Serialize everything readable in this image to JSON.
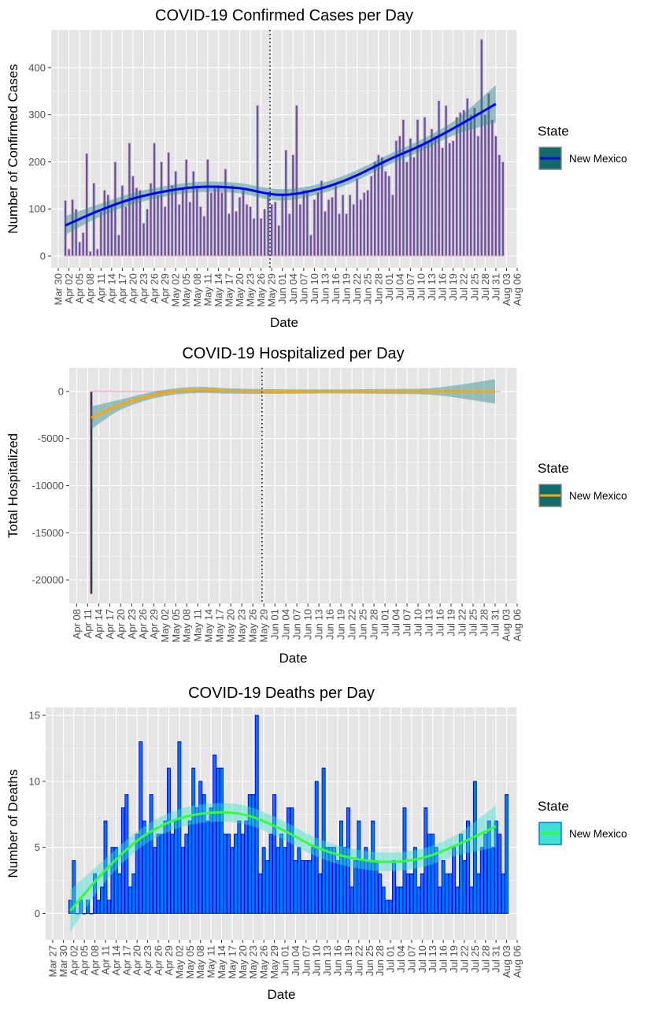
{
  "legend_title": "State",
  "state_label": "New Mexico",
  "colors": {
    "panel": "#e5e5e5",
    "grid": "#ffffff",
    "cases_bar_fill": "#555fa0",
    "cases_bar_outline": "#f3b7d1",
    "cases_smooth": "#0000ff",
    "hosp_bar_fill": "#2f3e4f",
    "hosp_bar_outline": "#f3b7d1",
    "hosp_smooth": "#ffa500",
    "deaths_bar_fill": "#0077ff",
    "deaths_bar_outline": "#0000cc",
    "deaths_smooth": "#33ff33",
    "band_teal": "#2e8b8b",
    "band_aqua": "#40e0d0",
    "legend_key_teal": "#116b6b",
    "legend_key_aqua": "#40e0d0"
  },
  "chart_data": [
    {
      "id": "cases",
      "type": "bar",
      "title": "COVID-19 Confirmed Cases per Day",
      "xlabel": "Date",
      "ylabel": "Number of Confirmed Cases",
      "x_unit": "day",
      "x_start": "2020-04-01",
      "xlim": [
        "2020-03-28",
        "2020-08-06"
      ],
      "ylim": [
        -25,
        480
      ],
      "yticks": [
        0,
        100,
        200,
        300,
        400
      ],
      "xtick_labels": [
        "Mar 30",
        "Apr 02",
        "Apr 05",
        "Apr 08",
        "Apr 11",
        "Apr 14",
        "Apr 17",
        "Apr 20",
        "Apr 23",
        "Apr 26",
        "Apr 29",
        "May 02",
        "May 05",
        "May 08",
        "May 11",
        "May 14",
        "May 17",
        "May 20",
        "May 23",
        "May 26",
        "May 29",
        "Jun 01",
        "Jun 04",
        "Jun 07",
        "Jun 10",
        "Jun 13",
        "Jun 16",
        "Jun 19",
        "Jun 22",
        "Jun 25",
        "Jun 28",
        "Jul 01",
        "Jul 04",
        "Jul 07",
        "Jul 10",
        "Jul 13",
        "Jul 16",
        "Jul 19",
        "Jul 22",
        "Jul 25",
        "Jul 28",
        "Jul 31",
        "Aug 03",
        "Aug 06"
      ],
      "vline": "2020-05-29",
      "grid": true,
      "legend": "right",
      "series": [
        {
          "name": "New Mexico",
          "values": [
            118,
            15,
            120,
            100,
            30,
            50,
            218,
            10,
            155,
            15,
            95,
            140,
            130,
            110,
            200,
            45,
            150,
            105,
            240,
            170,
            145,
            140,
            70,
            100,
            155,
            240,
            130,
            200,
            105,
            220,
            150,
            180,
            110,
            145,
            205,
            115,
            180,
            150,
            105,
            85,
            205,
            135,
            145,
            150,
            135,
            185,
            90,
            150,
            95,
            125,
            140,
            110,
            105,
            80,
            320,
            80,
            100,
            130,
            110,
            115,
            65,
            130,
            225,
            90,
            215,
            320,
            110,
            140,
            140,
            45,
            120,
            135,
            160,
            95,
            120,
            125,
            150,
            90,
            130,
            90,
            130,
            110,
            165,
            120,
            135,
            140,
            170,
            200,
            215,
            210,
            180,
            170,
            130,
            245,
            255,
            290,
            200,
            250,
            210,
            290,
            235,
            295,
            245,
            270,
            255,
            330,
            230,
            320,
            240,
            245,
            295,
            305,
            310,
            335,
            300,
            315,
            255,
            460,
            300,
            345,
            290,
            255,
            215,
            200
          ],
          "smooth_x": [
            "2020-04-01",
            "2020-04-10",
            "2020-04-20",
            "2020-05-01",
            "2020-05-10",
            "2020-05-20",
            "2020-05-31",
            "2020-06-10",
            "2020-06-20",
            "2020-07-01",
            "2020-07-10",
            "2020-07-20",
            "2020-07-31"
          ],
          "smooth_y": [
            65,
            95,
            122,
            140,
            147,
            144,
            130,
            140,
            165,
            205,
            235,
            275,
            323
          ],
          "band": [
            20,
            14,
            12,
            11,
            11,
            11,
            12,
            11,
            11,
            11,
            12,
            16,
            40
          ]
        }
      ]
    },
    {
      "id": "hospitalized",
      "type": "bar",
      "title": "COVID-19 Hospitalized per Day",
      "xlabel": "Date",
      "ylabel": "Total Hospitalized",
      "x_unit": "day",
      "x_start": "2020-04-12",
      "xlim": [
        "2020-04-06",
        "2020-08-06"
      ],
      "ylim": [
        -22500,
        2500
      ],
      "yticks": [
        0,
        -5000,
        -10000,
        -15000,
        -20000
      ],
      "xtick_labels": [
        "Apr 08",
        "Apr 11",
        "Apr 14",
        "Apr 17",
        "Apr 20",
        "Apr 23",
        "Apr 26",
        "Apr 29",
        "May 02",
        "May 05",
        "May 08",
        "May 11",
        "May 14",
        "May 17",
        "May 20",
        "May 23",
        "May 26",
        "May 29",
        "Jun 01",
        "Jun 04",
        "Jun 07",
        "Jun 10",
        "Jun 13",
        "Jun 16",
        "Jun 19",
        "Jun 22",
        "Jun 25",
        "Jun 28",
        "Jul 01",
        "Jul 04",
        "Jul 07",
        "Jul 10",
        "Jul 13",
        "Jul 16",
        "Jul 19",
        "Jul 22",
        "Jul 25",
        "Jul 28",
        "Jul 31",
        "Aug 03",
        "Aug 06"
      ],
      "vline": "2020-05-29",
      "grid": true,
      "legend": "right",
      "series": [
        {
          "name": "New Mexico",
          "values": [
            -21500,
            60,
            80,
            60,
            50,
            60,
            40,
            30,
            30,
            20,
            10,
            10,
            10,
            10,
            10,
            10,
            10,
            10,
            10,
            10,
            10,
            10,
            10,
            10,
            10,
            10,
            10,
            10,
            10,
            10,
            10,
            10,
            10,
            10,
            10,
            10,
            10,
            10,
            10,
            10,
            10,
            10,
            10,
            10,
            10,
            10,
            10,
            10,
            10,
            10,
            10,
            10,
            10,
            10,
            10,
            10,
            10,
            10,
            10,
            10,
            10,
            10,
            10,
            10,
            10,
            10,
            10,
            10,
            10,
            10,
            10,
            10,
            10,
            10,
            10,
            10,
            10,
            10,
            10,
            10,
            10,
            10,
            10,
            10,
            10,
            10,
            10,
            10,
            10,
            10,
            10,
            10,
            10,
            10,
            10,
            10,
            10,
            10,
            10,
            10,
            10,
            10,
            10,
            10,
            10,
            10,
            10,
            10,
            10,
            10,
            10,
            10
          ],
          "smooth_x": [
            "2020-04-12",
            "2020-04-20",
            "2020-04-30",
            "2020-05-10",
            "2020-05-20",
            "2020-06-01",
            "2020-06-15",
            "2020-07-01",
            "2020-07-15",
            "2020-07-31"
          ],
          "smooth_y": [
            -2800,
            -1400,
            -300,
            150,
            40,
            -10,
            0,
            0,
            0,
            0
          ],
          "band": [
            1200,
            550,
            350,
            330,
            280,
            250,
            220,
            260,
            400,
            1300
          ]
        }
      ]
    },
    {
      "id": "deaths",
      "type": "bar",
      "title": "COVID-19 Deaths per Day",
      "xlabel": "Date",
      "ylabel": "Number of Deaths",
      "x_unit": "day",
      "x_start": "2020-04-01",
      "xlim": [
        "2020-03-25",
        "2020-08-06"
      ],
      "ylim": [
        -2,
        15.6
      ],
      "yticks": [
        0,
        5,
        10,
        15
      ],
      "xtick_labels": [
        "Mar 27",
        "Mar 30",
        "Apr 02",
        "Apr 05",
        "Apr 08",
        "Apr 11",
        "Apr 14",
        "Apr 17",
        "Apr 20",
        "Apr 23",
        "Apr 26",
        "Apr 29",
        "May 02",
        "May 05",
        "May 08",
        "May 11",
        "May 14",
        "May 17",
        "May 20",
        "May 23",
        "May 26",
        "May 29",
        "Jun 01",
        "Jun 04",
        "Jun 07",
        "Jun 10",
        "Jun 13",
        "Jun 16",
        "Jun 19",
        "Jun 22",
        "Jun 25",
        "Jun 28",
        "Jul 01",
        "Jul 04",
        "Jul 07",
        "Jul 10",
        "Jul 13",
        "Jul 16",
        "Jul 19",
        "Jul 22",
        "Jul 25",
        "Jul 28",
        "Jul 31",
        "Aug 03",
        "Aug 06"
      ],
      "grid": true,
      "legend": "right",
      "series": [
        {
          "name": "New Mexico",
          "values": [
            1,
            4,
            0,
            1,
            0,
            1,
            0,
            3,
            1,
            2,
            7,
            1,
            5,
            5,
            3,
            8,
            9,
            2,
            3,
            6,
            13,
            7,
            6,
            9,
            5,
            6,
            6,
            7,
            11,
            6,
            7,
            13,
            5,
            6,
            7,
            11,
            8,
            10,
            9,
            7,
            8,
            12,
            11,
            11,
            6,
            6,
            5,
            6,
            7,
            6,
            7,
            9,
            9,
            15,
            3,
            5,
            4,
            6,
            9,
            5,
            6,
            5,
            8,
            8,
            4,
            5,
            4,
            4,
            4,
            5,
            10,
            3,
            11,
            5,
            5,
            5,
            4,
            7,
            5,
            8,
            2,
            4,
            7,
            4,
            5,
            4,
            7,
            4,
            3,
            2,
            1,
            1,
            4,
            2,
            2,
            8,
            3,
            3,
            5,
            2,
            3,
            8,
            6,
            6,
            5,
            2,
            4,
            3,
            3,
            5,
            2,
            6,
            4,
            7,
            2,
            10,
            3,
            5,
            6,
            7,
            5,
            7,
            6,
            3,
            9
          ],
          "smooth_x": [
            "2020-04-01",
            "2020-04-10",
            "2020-04-20",
            "2020-04-30",
            "2020-05-10",
            "2020-05-20",
            "2020-05-30",
            "2020-06-10",
            "2020-06-20",
            "2020-06-30",
            "2020-07-10",
            "2020-07-20",
            "2020-07-31"
          ],
          "smooth_y": [
            0.2,
            3,
            5.5,
            7,
            7.6,
            7.5,
            6.5,
            5,
            4.2,
            3.9,
            4.2,
            5.2,
            6.6
          ],
          "band": [
            1.6,
            0.9,
            0.7,
            0.7,
            0.7,
            0.7,
            0.7,
            0.7,
            0.7,
            0.7,
            0.7,
            0.8,
            1.6
          ]
        }
      ]
    }
  ]
}
